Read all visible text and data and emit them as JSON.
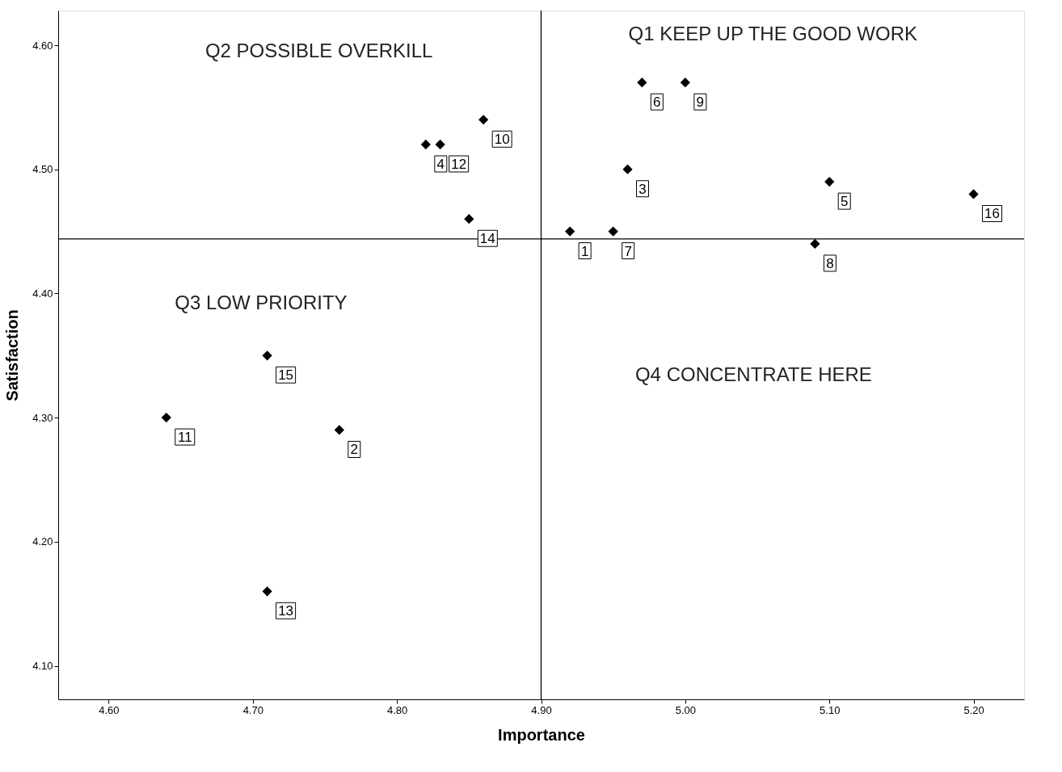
{
  "chart_data": {
    "type": "scatter",
    "xlabel": "Importance",
    "ylabel": "Satisfaction",
    "x": [
      4.92,
      4.76,
      4.96,
      4.82,
      5.1,
      4.97,
      4.95,
      5.09,
      5.0,
      4.86,
      4.64,
      4.83,
      4.71,
      4.85,
      4.71,
      5.2
    ],
    "series": [
      {
        "color": "#000000",
        "values": [
          4.45,
          4.29,
          4.5,
          4.52,
          4.49,
          4.57,
          4.45,
          4.44,
          4.57,
          4.54,
          4.3,
          4.52,
          4.16,
          4.46,
          4.35,
          4.48
        ]
      }
    ],
    "marker": "diamond",
    "xlim": [
      4.565,
      5.235
    ],
    "xticks": [
      {
        "value": 4.6,
        "label": "4.60"
      },
      {
        "value": 4.7,
        "label": "4.70"
      },
      {
        "value": 4.8,
        "label": "4.80"
      },
      {
        "value": 4.9,
        "label": "4.90"
      },
      {
        "value": 5.0,
        "label": "5.00"
      },
      {
        "value": 5.1,
        "label": "5.10"
      },
      {
        "value": 5.2,
        "label": "5.20"
      }
    ],
    "ylim": [
      4.073,
      4.628
    ],
    "yticks": [
      {
        "value": 4.1,
        "label": "4.10"
      },
      {
        "value": 4.2,
        "label": "4.20"
      },
      {
        "value": 4.3,
        "label": "4.30"
      },
      {
        "value": 4.4,
        "label": "4.40"
      },
      {
        "value": 4.5,
        "label": "4.50"
      },
      {
        "value": 4.6,
        "label": "4.60"
      }
    ],
    "ref_lines": [
      {
        "axis": "x",
        "value": 4.9,
        "color": "#000000"
      },
      {
        "axis": "y",
        "value": 4.444,
        "color": "#000000"
      }
    ],
    "annotations": [
      "Q1 KEEP UP THE GOOD WORK",
      "Q2 POSSIBLE OVERKILL",
      "Q3 LOW PRIORITY",
      "Q4 CONCENTRATE HERE",
      {
        "text": "1",
        "x": 4.92,
        "y": 4.45
      },
      {
        "text": "2",
        "x": 4.76,
        "y": 4.29
      },
      {
        "text": "3",
        "x": 4.96,
        "y": 4.5
      },
      {
        "text": "4",
        "x": 4.82,
        "y": 4.52
      },
      {
        "text": "5",
        "x": 5.1,
        "y": 4.49
      },
      {
        "text": "6",
        "x": 4.97,
        "y": 4.57
      },
      {
        "text": "7",
        "x": 4.95,
        "y": 4.45
      },
      {
        "text": "8",
        "x": 5.09,
        "y": 4.44
      },
      {
        "text": "9",
        "x": 5.0,
        "y": 4.57
      },
      {
        "text": "10",
        "x": 4.86,
        "y": 4.54
      },
      {
        "text": "11",
        "x": 4.64,
        "y": 4.3
      },
      {
        "text": "12",
        "x": 4.83,
        "y": 4.52
      },
      {
        "text": "13",
        "x": 4.71,
        "y": 4.16
      },
      {
        "text": "14",
        "x": 4.85,
        "y": 4.46
      },
      {
        "text": "15",
        "x": 4.71,
        "y": 4.35
      },
      {
        "text": "16",
        "x": 5.2,
        "y": 4.48
      }
    ],
    "grid": false
  }
}
